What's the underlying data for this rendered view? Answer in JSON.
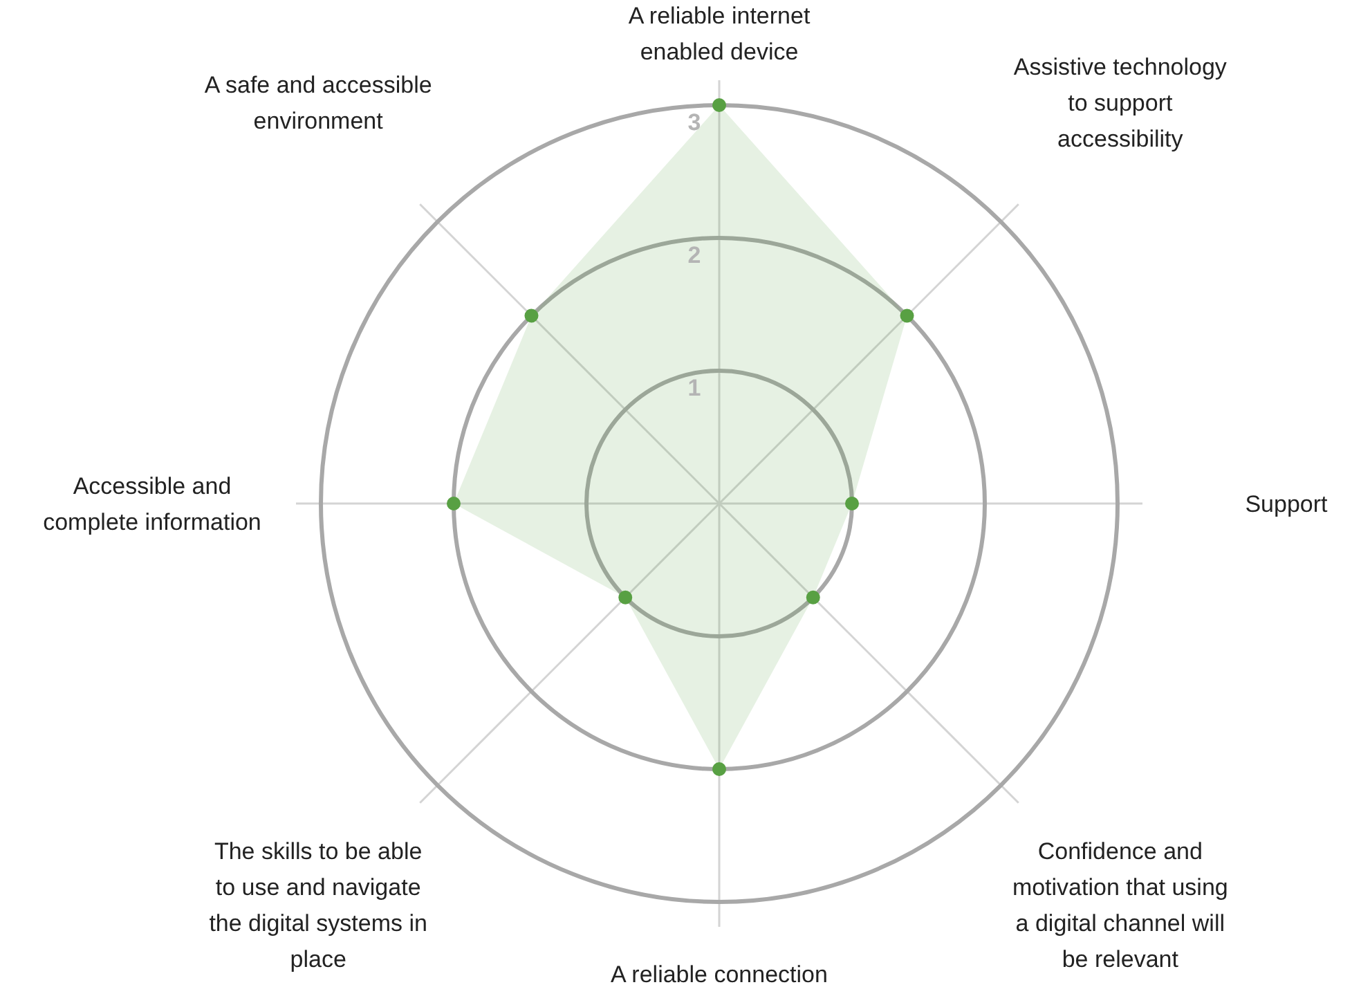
{
  "chart_data": {
    "type": "radar",
    "categories": [
      "A reliable internet enabled device",
      "Assistive technology to support accessibility",
      "Support",
      "Confidence and motivation that using a digital channel will be relevant",
      "A reliable connection",
      "The skills to be able to use and navigate the digital systems in place",
      "Accessible and complete information",
      "A safe and accessible environment"
    ],
    "series": [
      {
        "color": "#58a043",
        "values": [
          3,
          2,
          1,
          1,
          2,
          1,
          2,
          2
        ]
      }
    ],
    "ylim": [
      0,
      3
    ],
    "yticks": [
      1,
      2,
      3
    ],
    "grid": true,
    "marker": "circle"
  }
}
